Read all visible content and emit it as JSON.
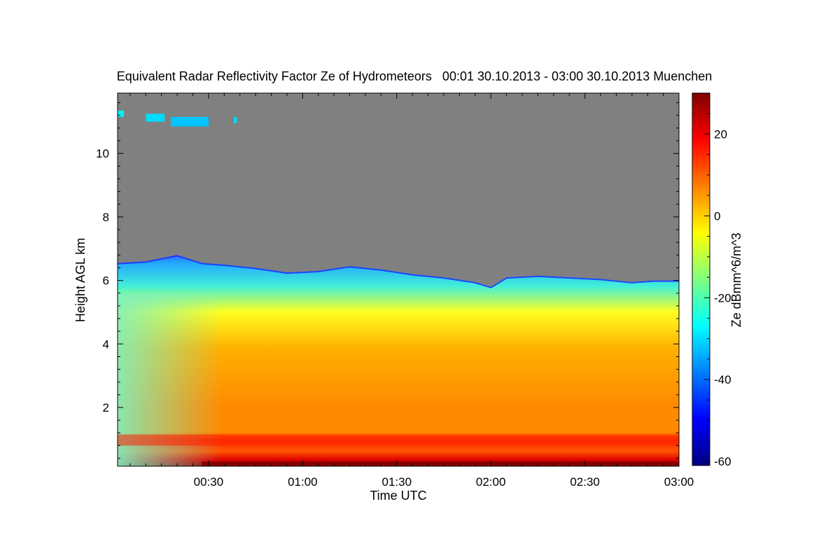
{
  "chart_data": {
    "type": "heatmap",
    "title": "Equivalent Radar Reflectivity Factor Ze of Hydrometeors   00:01 30.10.2013 - 03:00 30.10.2013 Muenchen",
    "xlabel": "Time UTC",
    "ylabel": "Height AGL km",
    "x_ticks": [
      "00:30",
      "01:00",
      "01:30",
      "02:00",
      "02:30",
      "03:00"
    ],
    "x_tick_minutes": [
      30,
      60,
      90,
      120,
      150,
      180
    ],
    "xlim_minutes": [
      1,
      180
    ],
    "y_ticks": [
      2,
      4,
      6,
      8,
      10
    ],
    "ylim": [
      0.15,
      11.9
    ],
    "colorbar": {
      "label": "Ze dBmm^6/m^3",
      "ticks": [
        20,
        0,
        -20,
        -40,
        -60
      ],
      "range": [
        -61,
        30
      ],
      "colors": [
        "#00007f",
        "#0000ff",
        "#007fff",
        "#00ffff",
        "#7fff7f",
        "#ffff00",
        "#ff7f00",
        "#ff0000",
        "#7f0000"
      ]
    },
    "background_color": "#808080",
    "echo_top_km": [
      [
        1,
        6.55
      ],
      [
        10,
        6.6
      ],
      [
        20,
        6.8
      ],
      [
        28,
        6.55
      ],
      [
        35,
        6.5
      ],
      [
        45,
        6.4
      ],
      [
        55,
        6.25
      ],
      [
        65,
        6.3
      ],
      [
        75,
        6.45
      ],
      [
        85,
        6.35
      ],
      [
        95,
        6.2
      ],
      [
        105,
        6.1
      ],
      [
        115,
        5.95
      ],
      [
        120,
        5.8
      ],
      [
        125,
        6.1
      ],
      [
        135,
        6.15
      ],
      [
        145,
        6.1
      ],
      [
        155,
        6.05
      ],
      [
        165,
        5.95
      ],
      [
        172,
        6.0
      ],
      [
        180,
        6.0
      ]
    ],
    "upper_echo_patches": [
      {
        "t_start": 1,
        "t_end": 3,
        "h_low": 11.15,
        "h_high": 11.35,
        "ze": -28
      },
      {
        "t_start": 10,
        "t_end": 16,
        "h_low": 11.0,
        "h_high": 11.25,
        "ze": -30
      },
      {
        "t_start": 18,
        "t_end": 30,
        "h_low": 10.85,
        "h_high": 11.15,
        "ze": -32
      },
      {
        "t_start": 38,
        "t_end": 39,
        "h_low": 10.95,
        "h_high": 11.15,
        "ze": -30
      }
    ],
    "bright_band_km": 1.05,
    "surface_layer_km": 0.3
  }
}
